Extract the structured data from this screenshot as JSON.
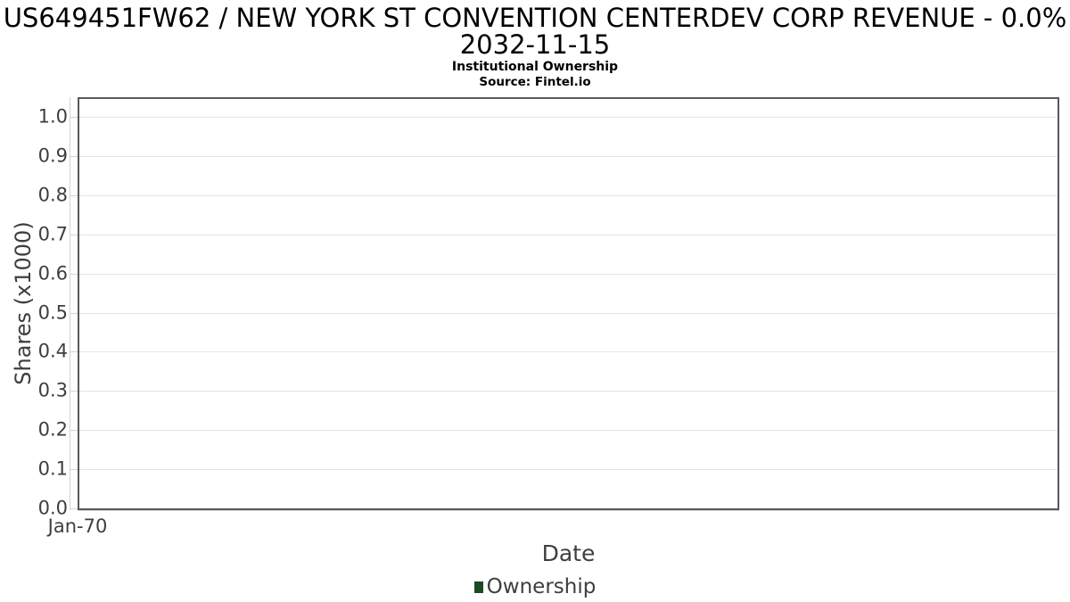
{
  "figure": {
    "title_line1": "US649451FW62 / NEW YORK ST CONVENTION CENTERDEV CORP REVENUE - 0.0%",
    "title_line2": "2032-11-15",
    "subtitle": "Institutional Ownership",
    "source": "Source: Fintel.io"
  },
  "chart_data": {
    "type": "line",
    "title": "US649451FW62 / NEW YORK ST CONVENTION CENTERDEV CORP REVENUE - 0.0% 2032-11-15",
    "subtitle": "Institutional Ownership",
    "source": "Source: Fintel.io",
    "xlabel": "Date",
    "ylabel": "Shares (x1000)",
    "xticks": [
      "Jan-70"
    ],
    "yticks": [
      "0.0",
      "0.1",
      "0.2",
      "0.3",
      "0.4",
      "0.5",
      "0.6",
      "0.7",
      "0.8",
      "0.9",
      "1.0"
    ],
    "ylim": [
      0.0,
      1.05
    ],
    "grid": true,
    "legend_position": "bottom",
    "series": [
      {
        "name": "Ownership",
        "color": "#1d4a26",
        "x": [],
        "values": []
      }
    ],
    "colors": {
      "plot_border": "#595959",
      "gridline": "#e3e3e3",
      "tick_line": "#d4d4d4",
      "text": "#3e3e3e",
      "title_text": "#000000"
    }
  }
}
